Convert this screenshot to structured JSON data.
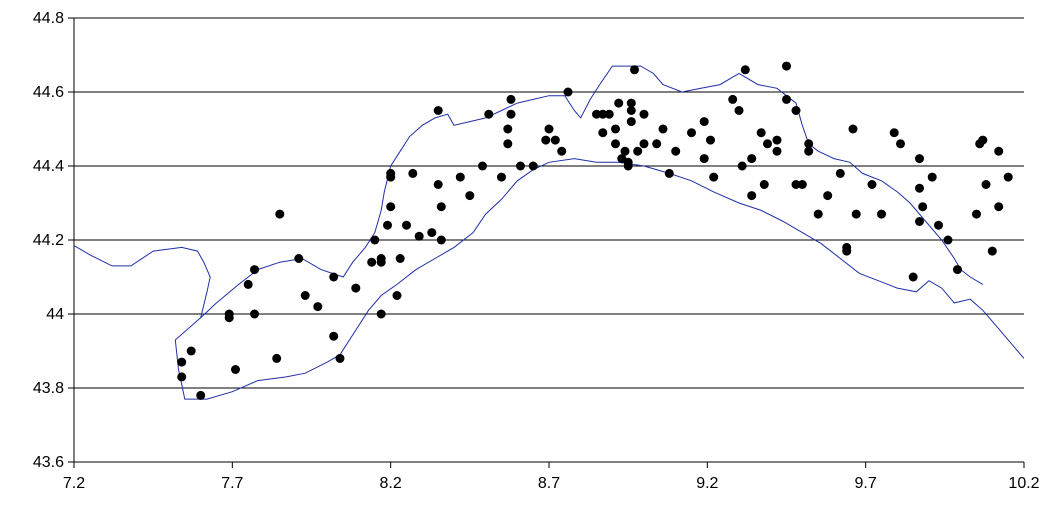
{
  "chart_data": {
    "type": "scatter",
    "title": "",
    "xlabel": "",
    "ylabel": "",
    "xlim": [
      7.2,
      10.2
    ],
    "ylim": [
      43.6,
      44.8
    ],
    "x_ticks": [
      7.2,
      7.7,
      8.2,
      8.7,
      9.2,
      9.7,
      10.2
    ],
    "x_tick_labels": [
      "7.2",
      "7.7",
      "8.2",
      "8.7",
      "9.2",
      "9.7",
      "10.2"
    ],
    "y_ticks": [
      43.6,
      43.8,
      44.0,
      44.2,
      44.4,
      44.6,
      44.8
    ],
    "y_tick_labels": [
      "43.6",
      "43.8",
      "44",
      "44.2",
      "44.4",
      "44.6",
      "44.8"
    ],
    "grid": "horizontal",
    "colors": {
      "points": "#000000",
      "outline": "#1f2fa8",
      "gridlines": "#000000",
      "background": "#ffffff"
    },
    "points": [
      [
        7.54,
        43.87
      ],
      [
        7.54,
        43.83
      ],
      [
        7.57,
        43.9
      ],
      [
        7.6,
        43.78
      ],
      [
        7.69,
        44.0
      ],
      [
        7.69,
        43.99
      ],
      [
        7.71,
        43.85
      ],
      [
        7.75,
        44.08
      ],
      [
        7.77,
        44.12
      ],
      [
        7.77,
        44.0
      ],
      [
        7.85,
        44.27
      ],
      [
        7.84,
        43.88
      ],
      [
        7.91,
        44.15
      ],
      [
        7.93,
        44.05
      ],
      [
        7.97,
        44.02
      ],
      [
        8.02,
        44.1
      ],
      [
        8.02,
        43.94
      ],
      [
        8.04,
        43.88
      ],
      [
        8.09,
        44.07
      ],
      [
        8.14,
        44.14
      ],
      [
        8.15,
        44.2
      ],
      [
        8.17,
        44.15
      ],
      [
        8.17,
        44.14
      ],
      [
        8.17,
        44.0
      ],
      [
        8.19,
        44.24
      ],
      [
        8.2,
        44.38
      ],
      [
        8.2,
        44.37
      ],
      [
        8.2,
        44.29
      ],
      [
        8.22,
        44.05
      ],
      [
        8.23,
        44.15
      ],
      [
        8.25,
        44.24
      ],
      [
        8.27,
        44.38
      ],
      [
        8.29,
        44.21
      ],
      [
        8.33,
        44.22
      ],
      [
        8.35,
        44.55
      ],
      [
        8.35,
        44.35
      ],
      [
        8.36,
        44.29
      ],
      [
        8.36,
        44.2
      ],
      [
        8.42,
        44.37
      ],
      [
        8.45,
        44.32
      ],
      [
        8.49,
        44.4
      ],
      [
        8.51,
        44.54
      ],
      [
        8.55,
        44.37
      ],
      [
        8.57,
        44.5
      ],
      [
        8.57,
        44.46
      ],
      [
        8.58,
        44.58
      ],
      [
        8.58,
        44.54
      ],
      [
        8.61,
        44.4
      ],
      [
        8.65,
        44.4
      ],
      [
        8.69,
        44.47
      ],
      [
        8.7,
        44.5
      ],
      [
        8.72,
        44.47
      ],
      [
        8.74,
        44.44
      ],
      [
        8.76,
        44.6
      ],
      [
        8.85,
        44.54
      ],
      [
        8.87,
        44.54
      ],
      [
        8.87,
        44.49
      ],
      [
        8.89,
        44.54
      ],
      [
        8.91,
        44.5
      ],
      [
        8.91,
        44.46
      ],
      [
        8.92,
        44.57
      ],
      [
        8.93,
        44.42
      ],
      [
        8.94,
        44.44
      ],
      [
        8.95,
        44.41
      ],
      [
        8.95,
        44.4
      ],
      [
        8.96,
        44.57
      ],
      [
        8.96,
        44.55
      ],
      [
        8.96,
        44.52
      ],
      [
        8.97,
        44.66
      ],
      [
        8.98,
        44.44
      ],
      [
        9.0,
        44.54
      ],
      [
        9.0,
        44.46
      ],
      [
        9.04,
        44.46
      ],
      [
        9.06,
        44.5
      ],
      [
        9.08,
        44.38
      ],
      [
        9.1,
        44.44
      ],
      [
        9.15,
        44.49
      ],
      [
        9.19,
        44.52
      ],
      [
        9.19,
        44.42
      ],
      [
        9.21,
        44.47
      ],
      [
        9.22,
        44.37
      ],
      [
        9.28,
        44.58
      ],
      [
        9.3,
        44.55
      ],
      [
        9.31,
        44.4
      ],
      [
        9.32,
        44.66
      ],
      [
        9.34,
        44.32
      ],
      [
        9.34,
        44.42
      ],
      [
        9.37,
        44.49
      ],
      [
        9.38,
        44.35
      ],
      [
        9.39,
        44.46
      ],
      [
        9.42,
        44.47
      ],
      [
        9.42,
        44.44
      ],
      [
        9.45,
        44.67
      ],
      [
        9.45,
        44.58
      ],
      [
        9.48,
        44.55
      ],
      [
        9.48,
        44.35
      ],
      [
        9.5,
        44.35
      ],
      [
        9.52,
        44.46
      ],
      [
        9.52,
        44.44
      ],
      [
        9.55,
        44.27
      ],
      [
        9.58,
        44.32
      ],
      [
        9.62,
        44.38
      ],
      [
        9.64,
        44.18
      ],
      [
        9.64,
        44.17
      ],
      [
        9.66,
        44.5
      ],
      [
        9.67,
        44.27
      ],
      [
        9.72,
        44.35
      ],
      [
        9.75,
        44.27
      ],
      [
        9.79,
        44.49
      ],
      [
        9.81,
        44.46
      ],
      [
        9.85,
        44.1
      ],
      [
        9.87,
        44.42
      ],
      [
        9.87,
        44.34
      ],
      [
        9.87,
        44.25
      ],
      [
        9.88,
        44.29
      ],
      [
        9.91,
        44.37
      ],
      [
        9.93,
        44.24
      ],
      [
        9.96,
        44.2
      ],
      [
        9.99,
        44.12
      ],
      [
        10.05,
        44.27
      ],
      [
        10.06,
        44.46
      ],
      [
        10.07,
        44.47
      ],
      [
        10.08,
        44.35
      ],
      [
        10.1,
        44.17
      ],
      [
        10.12,
        44.29
      ],
      [
        10.12,
        44.44
      ],
      [
        10.15,
        44.37
      ]
    ],
    "outline": [
      [
        7.17,
        44.2
      ],
      [
        7.25,
        44.16
      ],
      [
        7.32,
        44.13
      ],
      [
        7.38,
        44.13
      ],
      [
        7.45,
        44.17
      ],
      [
        7.54,
        44.18
      ],
      [
        7.59,
        44.17
      ],
      [
        7.61,
        44.14
      ],
      [
        7.63,
        44.1
      ],
      [
        7.62,
        44.06
      ],
      [
        7.6,
        43.99
      ],
      [
        7.52,
        43.93
      ],
      [
        7.53,
        43.85
      ],
      [
        7.55,
        43.77
      ],
      [
        7.62,
        43.77
      ],
      [
        7.7,
        43.79
      ],
      [
        7.78,
        43.82
      ],
      [
        7.87,
        43.83
      ],
      [
        7.93,
        43.84
      ],
      [
        8.0,
        43.87
      ],
      [
        8.04,
        43.89
      ],
      [
        8.07,
        43.93
      ],
      [
        8.1,
        43.97
      ],
      [
        8.13,
        44.01
      ],
      [
        8.17,
        44.05
      ],
      [
        8.22,
        44.08
      ],
      [
        8.28,
        44.12
      ],
      [
        8.34,
        44.15
      ],
      [
        8.4,
        44.18
      ],
      [
        8.46,
        44.22
      ],
      [
        8.5,
        44.27
      ],
      [
        8.55,
        44.31
      ],
      [
        8.6,
        44.36
      ],
      [
        8.65,
        44.39
      ],
      [
        8.7,
        44.41
      ],
      [
        8.78,
        44.42
      ],
      [
        8.85,
        44.41
      ],
      [
        8.92,
        44.41
      ],
      [
        9.0,
        44.4
      ],
      [
        9.08,
        44.38
      ],
      [
        9.15,
        44.36
      ],
      [
        9.22,
        44.33
      ],
      [
        9.3,
        44.3
      ],
      [
        9.37,
        44.28
      ],
      [
        9.44,
        44.25
      ],
      [
        9.5,
        44.22
      ],
      [
        9.56,
        44.19
      ],
      [
        9.62,
        44.15
      ],
      [
        9.68,
        44.11
      ],
      [
        9.74,
        44.09
      ],
      [
        9.8,
        44.07
      ],
      [
        9.86,
        44.06
      ],
      [
        9.9,
        44.09
      ],
      [
        9.94,
        44.07
      ],
      [
        9.98,
        44.03
      ],
      [
        10.03,
        44.04
      ],
      [
        10.07,
        44.01
      ],
      [
        10.11,
        43.97
      ],
      [
        10.15,
        43.93
      ],
      [
        10.19,
        43.89
      ],
      [
        10.2,
        43.88
      ]
    ],
    "outline_inland": [
      [
        7.6,
        43.99
      ],
      [
        7.65,
        44.03
      ],
      [
        7.72,
        44.08
      ],
      [
        7.78,
        44.12
      ],
      [
        7.85,
        44.14
      ],
      [
        7.92,
        44.15
      ],
      [
        7.98,
        44.12
      ],
      [
        8.05,
        44.1
      ],
      [
        8.08,
        44.14
      ],
      [
        8.12,
        44.18
      ],
      [
        8.15,
        44.22
      ],
      [
        8.17,
        44.28
      ],
      [
        8.18,
        44.33
      ],
      [
        8.2,
        44.4
      ],
      [
        8.23,
        44.44
      ],
      [
        8.26,
        44.48
      ],
      [
        8.3,
        44.51
      ],
      [
        8.34,
        44.53
      ],
      [
        8.38,
        44.54
      ],
      [
        8.4,
        44.51
      ],
      [
        8.45,
        44.52
      ],
      [
        8.5,
        44.53
      ],
      [
        8.55,
        44.55
      ],
      [
        8.6,
        44.57
      ],
      [
        8.65,
        44.58
      ],
      [
        8.7,
        44.59
      ],
      [
        8.75,
        44.59
      ],
      [
        8.78,
        44.55
      ],
      [
        8.8,
        44.53
      ],
      [
        8.83,
        44.58
      ],
      [
        8.86,
        44.62
      ],
      [
        8.9,
        44.67
      ],
      [
        8.95,
        44.67
      ],
      [
        8.99,
        44.67
      ],
      [
        9.03,
        44.65
      ],
      [
        9.06,
        44.62
      ],
      [
        9.12,
        44.6
      ],
      [
        9.18,
        44.61
      ],
      [
        9.24,
        44.62
      ],
      [
        9.3,
        44.65
      ],
      [
        9.36,
        44.62
      ],
      [
        9.42,
        44.61
      ],
      [
        9.48,
        44.57
      ],
      [
        9.5,
        44.51
      ],
      [
        9.52,
        44.46
      ],
      [
        9.55,
        44.44
      ],
      [
        9.6,
        44.42
      ],
      [
        9.65,
        44.41
      ],
      [
        9.69,
        44.38
      ],
      [
        9.75,
        44.36
      ],
      [
        9.8,
        44.33
      ],
      [
        9.84,
        44.3
      ],
      [
        9.89,
        44.25
      ],
      [
        9.94,
        44.2
      ],
      [
        9.98,
        44.15
      ],
      [
        10.0,
        44.12
      ],
      [
        10.03,
        44.1
      ],
      [
        10.07,
        44.08
      ]
    ]
  }
}
